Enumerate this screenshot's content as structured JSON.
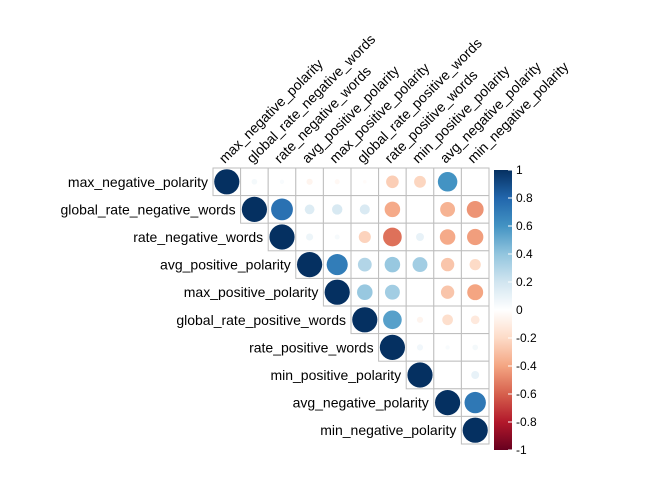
{
  "chart_data": {
    "type": "heatmap",
    "style": "upper-triangle circle correlation matrix",
    "variables": [
      "max_negative_polarity",
      "global_rate_negative_words",
      "rate_negative_words",
      "avg_positive_polarity",
      "max_positive_polarity",
      "global_rate_positive_words",
      "rate_positive_words",
      "min_positive_polarity",
      "avg_negative_polarity",
      "min_negative_polarity"
    ],
    "matrix": [
      [
        1.0,
        0.05,
        0.03,
        -0.06,
        -0.04,
        -0.02,
        -0.25,
        -0.22,
        0.6,
        0.0
      ],
      [
        0.05,
        1.0,
        0.75,
        0.15,
        0.17,
        0.16,
        -0.38,
        0.0,
        -0.35,
        -0.45
      ],
      [
        0.03,
        0.75,
        1.0,
        0.08,
        0.04,
        -0.23,
        -0.55,
        0.1,
        -0.38,
        -0.42
      ],
      [
        -0.06,
        0.15,
        0.08,
        1.0,
        0.7,
        0.3,
        0.38,
        0.35,
        -0.28,
        -0.2
      ],
      [
        -0.04,
        0.17,
        0.04,
        0.7,
        1.0,
        0.38,
        0.35,
        0.0,
        -0.28,
        -0.4
      ],
      [
        -0.02,
        0.16,
        -0.23,
        0.3,
        0.38,
        1.0,
        0.55,
        -0.06,
        -0.18,
        -0.12
      ],
      [
        -0.25,
        -0.38,
        -0.55,
        0.38,
        0.35,
        0.55,
        1.0,
        0.06,
        0.03,
        0.05
      ],
      [
        -0.22,
        0.0,
        0.1,
        0.35,
        0.0,
        -0.06,
        0.06,
        1.0,
        0.0,
        0.1
      ],
      [
        0.6,
        -0.35,
        -0.38,
        -0.28,
        -0.28,
        -0.18,
        0.03,
        0.0,
        1.0,
        0.72
      ],
      [
        0.0,
        -0.45,
        -0.42,
        -0.2,
        -0.4,
        -0.12,
        0.05,
        0.1,
        0.72,
        1.0
      ]
    ],
    "color_scale": {
      "min": -1,
      "max": 1,
      "ticks": [
        "1",
        "0.8",
        "0.6",
        "0.4",
        "0.2",
        "0",
        "-0.2",
        "-0.4",
        "-0.6",
        "-0.8",
        "-1"
      ],
      "colors": [
        "#67001F",
        "#B2182B",
        "#D6604D",
        "#F4A582",
        "#FDDBC7",
        "#FFFFFF",
        "#D1E5F0",
        "#92C5DE",
        "#4393C3",
        "#2166AC",
        "#053061"
      ]
    },
    "legend": "right",
    "grid": true
  }
}
